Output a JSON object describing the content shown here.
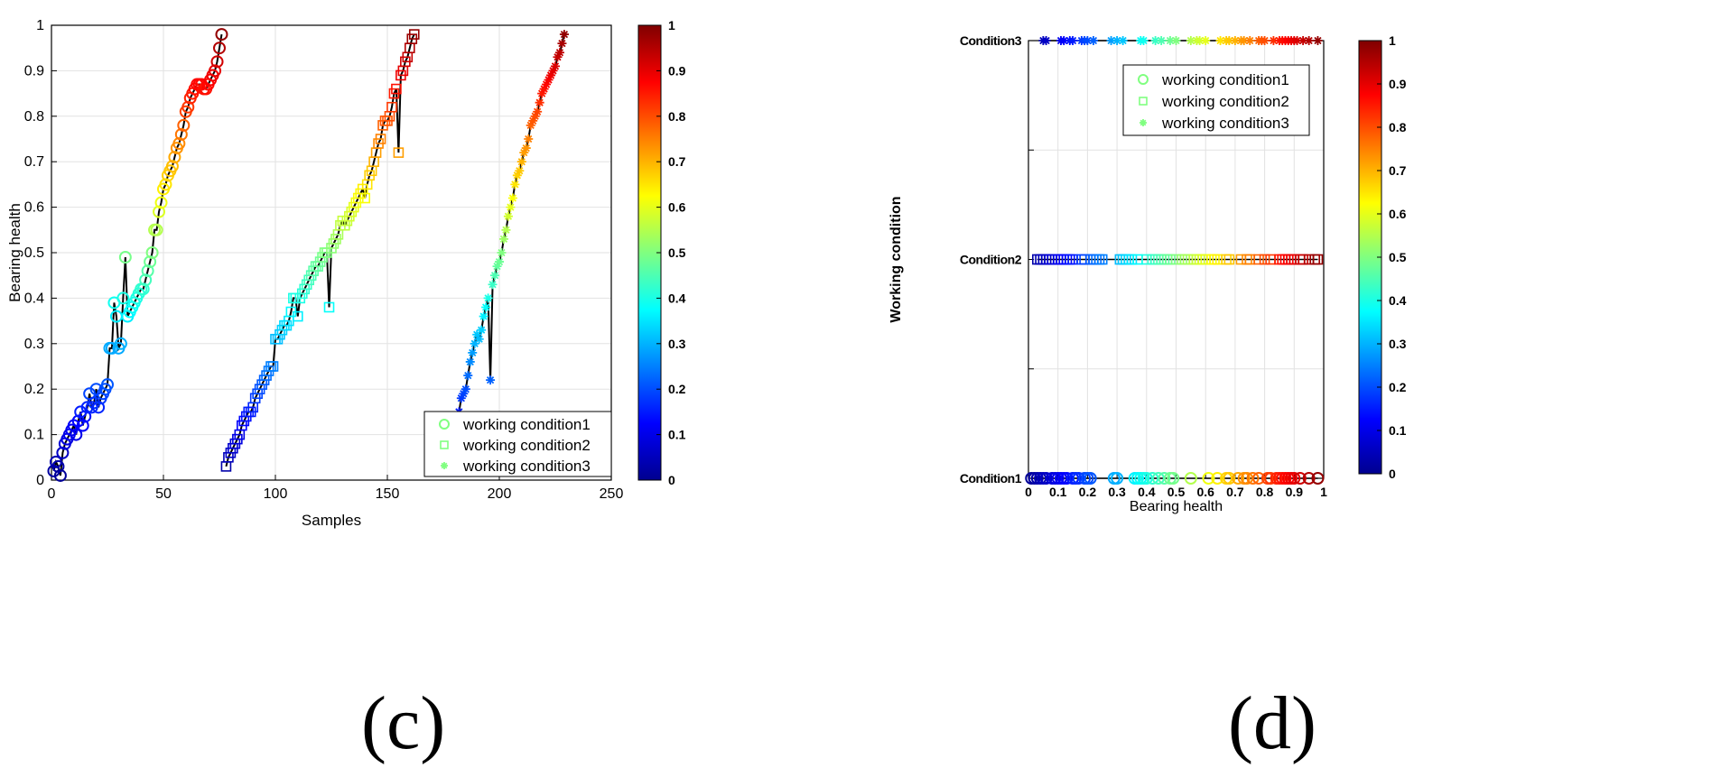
{
  "colormap": [
    "#00008f",
    "#0000ff",
    "#0080ff",
    "#00ffff",
    "#80ff80",
    "#ffff00",
    "#ff8000",
    "#ff0000",
    "#800000"
  ],
  "chart_data": [
    {
      "panel": "(c)",
      "type": "scatter",
      "xlabel": "Samples",
      "ylabel": "Bearing health",
      "xlim": [
        0,
        250
      ],
      "ylim": [
        0,
        1
      ],
      "xticks": [
        "0",
        "50",
        "100",
        "150",
        "200",
        "250"
      ],
      "yticks": [
        "0",
        "0.1",
        "0.2",
        "0.3",
        "0.4",
        "0.5",
        "0.6",
        "0.7",
        "0.8",
        "0.9",
        "1"
      ],
      "grid": true,
      "legend_position": "bottom-right",
      "colorbar": {
        "range": [
          0,
          1
        ],
        "ticks": [
          "0",
          "0.1",
          "0.2",
          "0.3",
          "0.4",
          "0.5",
          "0.6",
          "0.7",
          "0.8",
          "0.9",
          "1"
        ]
      },
      "series": [
        {
          "name": "working condition1",
          "marker": "circle",
          "points": [
            [
              1,
              0.02
            ],
            [
              2,
              0.04
            ],
            [
              3,
              0.03
            ],
            [
              4,
              0.01
            ],
            [
              5,
              0.06
            ],
            [
              6,
              0.08
            ],
            [
              7,
              0.09
            ],
            [
              8,
              0.1
            ],
            [
              9,
              0.11
            ],
            [
              10,
              0.12
            ],
            [
              11,
              0.1
            ],
            [
              12,
              0.13
            ],
            [
              13,
              0.15
            ],
            [
              14,
              0.12
            ],
            [
              15,
              0.14
            ],
            [
              16,
              0.16
            ],
            [
              17,
              0.19
            ],
            [
              18,
              0.16
            ],
            [
              19,
              0.17
            ],
            [
              20,
              0.2
            ],
            [
              21,
              0.16
            ],
            [
              22,
              0.18
            ],
            [
              23,
              0.19
            ],
            [
              24,
              0.2
            ],
            [
              25,
              0.21
            ],
            [
              26,
              0.29
            ],
            [
              27,
              0.29
            ],
            [
              28,
              0.39
            ],
            [
              29,
              0.36
            ],
            [
              30,
              0.29
            ],
            [
              31,
              0.3
            ],
            [
              32,
              0.4
            ],
            [
              33,
              0.49
            ],
            [
              34,
              0.36
            ],
            [
              35,
              0.37
            ],
            [
              36,
              0.38
            ],
            [
              37,
              0.39
            ],
            [
              38,
              0.4
            ],
            [
              39,
              0.41
            ],
            [
              40,
              0.42
            ],
            [
              41,
              0.42
            ],
            [
              42,
              0.44
            ],
            [
              43,
              0.46
            ],
            [
              44,
              0.48
            ],
            [
              45,
              0.5
            ],
            [
              46,
              0.55
            ],
            [
              47,
              0.55
            ],
            [
              48,
              0.59
            ],
            [
              49,
              0.61
            ],
            [
              50,
              0.64
            ],
            [
              51,
              0.65
            ],
            [
              52,
              0.67
            ],
            [
              53,
              0.68
            ],
            [
              54,
              0.69
            ],
            [
              55,
              0.71
            ],
            [
              56,
              0.73
            ],
            [
              57,
              0.74
            ],
            [
              58,
              0.76
            ],
            [
              59,
              0.78
            ],
            [
              60,
              0.81
            ],
            [
              61,
              0.82
            ],
            [
              62,
              0.84
            ],
            [
              63,
              0.85
            ],
            [
              64,
              0.86
            ],
            [
              65,
              0.87
            ],
            [
              66,
              0.87
            ],
            [
              67,
              0.87
            ],
            [
              68,
              0.86
            ],
            [
              69,
              0.86
            ],
            [
              70,
              0.87
            ],
            [
              71,
              0.88
            ],
            [
              72,
              0.89
            ],
            [
              73,
              0.9
            ],
            [
              74,
              0.92
            ],
            [
              75,
              0.95
            ],
            [
              76,
              0.98
            ]
          ]
        },
        {
          "name": "working condition2",
          "marker": "square",
          "points": [
            [
              78,
              0.03
            ],
            [
              79,
              0.05
            ],
            [
              80,
              0.06
            ],
            [
              81,
              0.07
            ],
            [
              82,
              0.08
            ],
            [
              83,
              0.09
            ],
            [
              84,
              0.1
            ],
            [
              85,
              0.12
            ],
            [
              86,
              0.13
            ],
            [
              87,
              0.14
            ],
            [
              88,
              0.15
            ],
            [
              89,
              0.15
            ],
            [
              90,
              0.16
            ],
            [
              91,
              0.18
            ],
            [
              92,
              0.19
            ],
            [
              93,
              0.2
            ],
            [
              94,
              0.21
            ],
            [
              95,
              0.22
            ],
            [
              96,
              0.23
            ],
            [
              97,
              0.24
            ],
            [
              98,
              0.25
            ],
            [
              99,
              0.25
            ],
            [
              100,
              0.31
            ],
            [
              101,
              0.31
            ],
            [
              102,
              0.32
            ],
            [
              103,
              0.33
            ],
            [
              104,
              0.34
            ],
            [
              105,
              0.34
            ],
            [
              106,
              0.35
            ],
            [
              107,
              0.37
            ],
            [
              108,
              0.4
            ],
            [
              109,
              0.4
            ],
            [
              110,
              0.36
            ],
            [
              111,
              0.4
            ],
            [
              112,
              0.41
            ],
            [
              113,
              0.42
            ],
            [
              114,
              0.43
            ],
            [
              115,
              0.44
            ],
            [
              116,
              0.45
            ],
            [
              117,
              0.46
            ],
            [
              118,
              0.47
            ],
            [
              119,
              0.47
            ],
            [
              120,
              0.48
            ],
            [
              121,
              0.49
            ],
            [
              122,
              0.5
            ],
            [
              123,
              0.5
            ],
            [
              124,
              0.38
            ],
            [
              125,
              0.51
            ],
            [
              126,
              0.52
            ],
            [
              127,
              0.53
            ],
            [
              128,
              0.54
            ],
            [
              129,
              0.56
            ],
            [
              130,
              0.57
            ],
            [
              131,
              0.56
            ],
            [
              132,
              0.57
            ],
            [
              133,
              0.58
            ],
            [
              134,
              0.59
            ],
            [
              135,
              0.6
            ],
            [
              136,
              0.61
            ],
            [
              137,
              0.62
            ],
            [
              138,
              0.63
            ],
            [
              139,
              0.64
            ],
            [
              140,
              0.62
            ],
            [
              141,
              0.65
            ],
            [
              142,
              0.67
            ],
            [
              143,
              0.68
            ],
            [
              144,
              0.7
            ],
            [
              145,
              0.72
            ],
            [
              146,
              0.74
            ],
            [
              147,
              0.75
            ],
            [
              148,
              0.78
            ],
            [
              149,
              0.79
            ],
            [
              150,
              0.79
            ],
            [
              151,
              0.8
            ],
            [
              152,
              0.82
            ],
            [
              153,
              0.85
            ],
            [
              154,
              0.86
            ],
            [
              155,
              0.72
            ],
            [
              156,
              0.89
            ],
            [
              157,
              0.9
            ],
            [
              158,
              0.92
            ],
            [
              159,
              0.93
            ],
            [
              160,
              0.95
            ],
            [
              161,
              0.97
            ],
            [
              162,
              0.98
            ]
          ]
        },
        {
          "name": "working condition3",
          "marker": "asterisk",
          "points": [
            [
              182,
              0.15
            ],
            [
              183,
              0.18
            ],
            [
              184,
              0.19
            ],
            [
              185,
              0.2
            ],
            [
              186,
              0.23
            ],
            [
              187,
              0.26
            ],
            [
              188,
              0.28
            ],
            [
              189,
              0.3
            ],
            [
              190,
              0.32
            ],
            [
              191,
              0.31
            ],
            [
              192,
              0.33
            ],
            [
              193,
              0.36
            ],
            [
              194,
              0.38
            ],
            [
              195,
              0.4
            ],
            [
              196,
              0.22
            ],
            [
              197,
              0.43
            ],
            [
              198,
              0.45
            ],
            [
              199,
              0.47
            ],
            [
              200,
              0.48
            ],
            [
              201,
              0.5
            ],
            [
              202,
              0.53
            ],
            [
              203,
              0.55
            ],
            [
              204,
              0.58
            ],
            [
              205,
              0.6
            ],
            [
              206,
              0.62
            ],
            [
              207,
              0.65
            ],
            [
              208,
              0.67
            ],
            [
              209,
              0.68
            ],
            [
              210,
              0.7
            ],
            [
              211,
              0.72
            ],
            [
              212,
              0.73
            ],
            [
              213,
              0.75
            ],
            [
              214,
              0.78
            ],
            [
              215,
              0.79
            ],
            [
              216,
              0.8
            ],
            [
              217,
              0.81
            ],
            [
              218,
              0.83
            ],
            [
              219,
              0.85
            ],
            [
              220,
              0.86
            ],
            [
              221,
              0.87
            ],
            [
              222,
              0.88
            ],
            [
              223,
              0.89
            ],
            [
              224,
              0.9
            ],
            [
              225,
              0.91
            ],
            [
              226,
              0.93
            ],
            [
              227,
              0.94
            ],
            [
              228,
              0.96
            ],
            [
              229,
              0.98
            ]
          ]
        }
      ]
    },
    {
      "panel": "(d)",
      "type": "scatter",
      "xlabel": "Bearing health",
      "ylabel": "Working condition",
      "xlim": [
        0,
        1
      ],
      "xticks": [
        "0",
        "0.1",
        "0.2",
        "0.3",
        "0.4",
        "0.5",
        "0.6",
        "0.7",
        "0.8",
        "0.9",
        "1"
      ],
      "ycategories": [
        "Condition1",
        "Condition2",
        "Condition3"
      ],
      "grid": true,
      "legend_position": "top-right",
      "colorbar": {
        "range": [
          0,
          1
        ],
        "ticks": [
          "0",
          "0.1",
          "0.2",
          "0.3",
          "0.4",
          "0.5",
          "0.6",
          "0.7",
          "0.8",
          "0.9",
          "1"
        ]
      },
      "series": [
        {
          "name": "working condition1",
          "marker": "circle",
          "category": "Condition1",
          "values": [
            0.01,
            0.02,
            0.03,
            0.04,
            0.05,
            0.06,
            0.08,
            0.09,
            0.1,
            0.11,
            0.12,
            0.13,
            0.15,
            0.16,
            0.17,
            0.19,
            0.2,
            0.21,
            0.29,
            0.3,
            0.36,
            0.37,
            0.38,
            0.39,
            0.4,
            0.42,
            0.44,
            0.46,
            0.48,
            0.49,
            0.55,
            0.61,
            0.64,
            0.67,
            0.68,
            0.71,
            0.73,
            0.74,
            0.76,
            0.78,
            0.81,
            0.82,
            0.84,
            0.85,
            0.86,
            0.87,
            0.88,
            0.89,
            0.9,
            0.92,
            0.95,
            0.98
          ]
        },
        {
          "name": "working condition2",
          "marker": "square",
          "category": "Condition2",
          "values": [
            0.03,
            0.04,
            0.05,
            0.06,
            0.07,
            0.08,
            0.1,
            0.11,
            0.12,
            0.13,
            0.14,
            0.15,
            0.18,
            0.19,
            0.21,
            0.22,
            0.23,
            0.24,
            0.25,
            0.31,
            0.32,
            0.33,
            0.34,
            0.35,
            0.37,
            0.4,
            0.42,
            0.43,
            0.44,
            0.45,
            0.46,
            0.47,
            0.48,
            0.5,
            0.52,
            0.53,
            0.54,
            0.56,
            0.57,
            0.58,
            0.59,
            0.6,
            0.62,
            0.63,
            0.64,
            0.67,
            0.68,
            0.72,
            0.74,
            0.75,
            0.78,
            0.8,
            0.82,
            0.85,
            0.86,
            0.87,
            0.88,
            0.89,
            0.9,
            0.92,
            0.93,
            0.95,
            0.97,
            0.98
          ]
        },
        {
          "name": "working condition3",
          "marker": "asterisk",
          "category": "Condition3",
          "values": [
            0.05,
            0.06,
            0.11,
            0.12,
            0.14,
            0.15,
            0.18,
            0.19,
            0.2,
            0.22,
            0.28,
            0.3,
            0.32,
            0.38,
            0.39,
            0.43,
            0.45,
            0.48,
            0.5,
            0.55,
            0.57,
            0.58,
            0.6,
            0.65,
            0.67,
            0.68,
            0.7,
            0.72,
            0.73,
            0.75,
            0.78,
            0.79,
            0.8,
            0.83,
            0.85,
            0.86,
            0.87,
            0.88,
            0.89,
            0.9,
            0.91,
            0.93,
            0.95,
            0.98
          ]
        }
      ]
    }
  ]
}
